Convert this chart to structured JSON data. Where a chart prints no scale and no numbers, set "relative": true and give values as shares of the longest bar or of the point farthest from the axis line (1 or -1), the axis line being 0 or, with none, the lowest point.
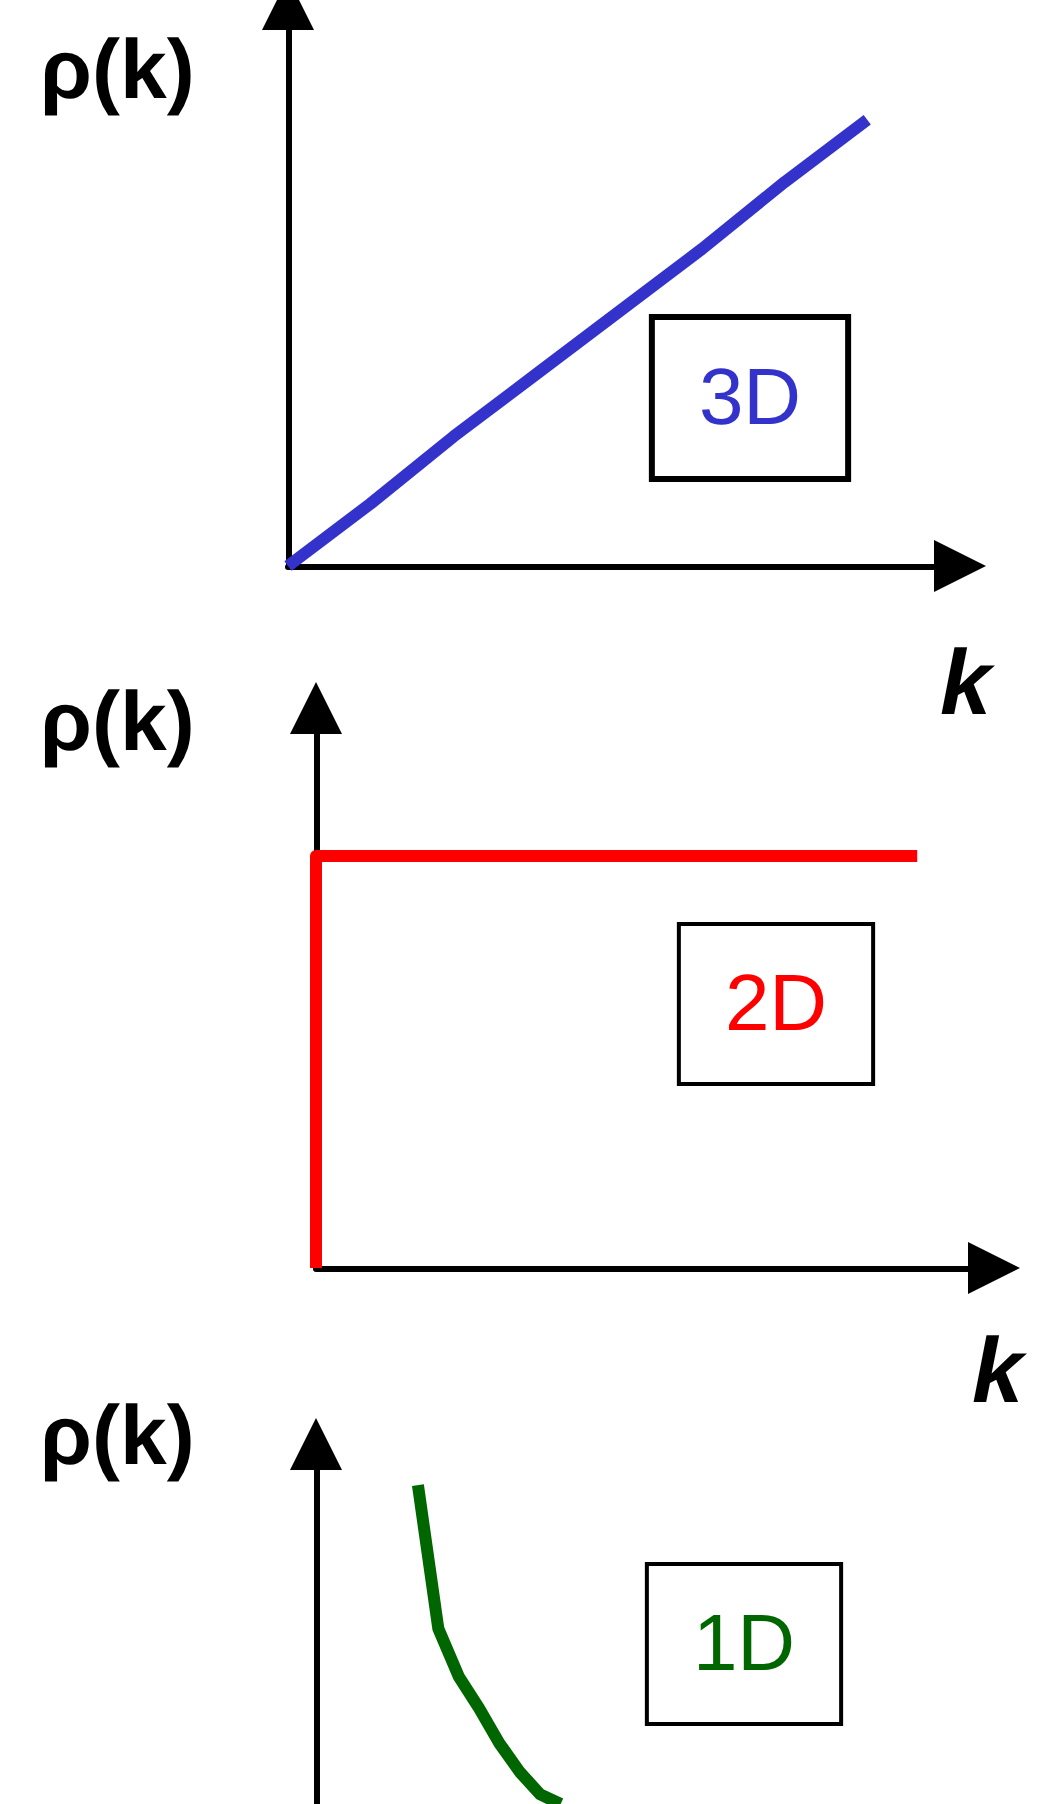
{
  "chart_data": [
    {
      "type": "line",
      "ylabel": "ρ(k)",
      "xlabel": "k",
      "annotations": [
        "3D"
      ],
      "relative": true,
      "grid": false,
      "marker": "none",
      "line_style": "solid",
      "categories": [
        null,
        null,
        null,
        null,
        null,
        null,
        null,
        null,
        null
      ],
      "series": [
        {
          "color": "#3333cc",
          "values": [
            0,
            0.14,
            0.29,
            0.43,
            0.57,
            0.71,
            0.86,
            1,
            null
          ]
        }
      ]
    },
    {
      "type": "step",
      "ylabel": "ρ(k)",
      "xlabel": "k",
      "annotations": [
        "2D"
      ],
      "relative": true,
      "grid": false,
      "marker": "none",
      "line_style": "solid",
      "categories": [
        null,
        null,
        null,
        null,
        null,
        null,
        null,
        null,
        null,
        null,
        null
      ],
      "series": [
        {
          "color": "#ff0000",
          "values": [
            0,
            1,
            1,
            1,
            1,
            1,
            1,
            1,
            1,
            1,
            null
          ]
        }
      ]
    },
    {
      "type": "line",
      "ylabel": "ρ(k)",
      "annotations": [
        "1D"
      ],
      "relative": true,
      "grid": false,
      "marker": "none",
      "line_style": "solid",
      "categories": [
        null,
        null,
        null,
        null,
        null,
        null,
        null,
        null,
        null,
        null,
        null,
        null,
        null,
        null,
        null,
        null,
        null,
        null,
        null,
        null,
        null,
        null,
        null,
        null,
        null,
        null,
        null,
        null,
        null,
        null,
        null,
        null
      ],
      "series": [
        {
          "color": "#006600",
          "values": [
            null,
            null,
            null,
            null,
            null,
            1,
            0.55,
            0.4,
            0.3,
            0.19,
            0.1,
            0.03,
            0,
            null,
            null,
            null,
            null,
            null,
            null,
            null,
            null,
            null,
            null,
            null,
            null,
            null,
            null,
            null,
            null,
            null,
            null,
            null
          ]
        }
      ]
    }
  ]
}
